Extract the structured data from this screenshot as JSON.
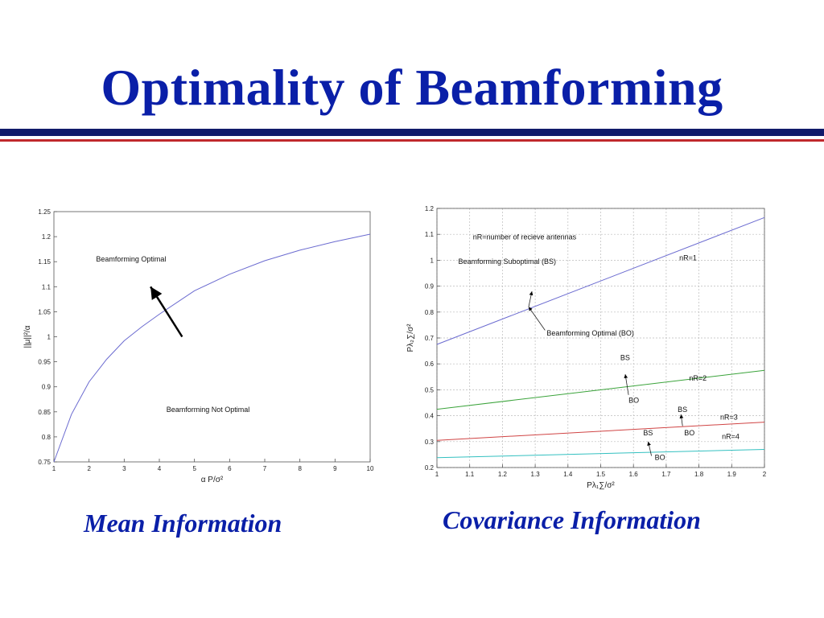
{
  "slide": {
    "title": "Optimality of Beamforming",
    "left_caption": "Mean Information",
    "right_caption": "Covariance Information",
    "title_color": "#0a1fa8"
  },
  "chart_data": [
    {
      "type": "line",
      "xlabel": "α P/σ²",
      "ylabel": "||μ||²/α",
      "xlim": [
        1,
        10
      ],
      "ylim": [
        0.75,
        1.25
      ],
      "xticks": [
        1,
        2,
        3,
        4,
        5,
        6,
        7,
        8,
        9,
        10
      ],
      "yticks": [
        0.75,
        0.8,
        0.85,
        0.9,
        0.95,
        1,
        1.05,
        1.1,
        1.15,
        1.2,
        1.25
      ],
      "grid": false,
      "series": [
        {
          "color": "#6b6bd0",
          "x": [
            1,
            1.5,
            2,
            2.5,
            3,
            3.5,
            4,
            5,
            6,
            7,
            8,
            9,
            10
          ],
          "y": [
            0.75,
            0.845,
            0.91,
            0.955,
            0.992,
            1.02,
            1.045,
            1.092,
            1.125,
            1.152,
            1.173,
            1.19,
            1.205
          ]
        }
      ],
      "annotations": [
        {
          "text": "Beamforming Optimal",
          "x": 2.2,
          "y": 1.15
        },
        {
          "text": "Beamforming Not Optimal",
          "x": 4.2,
          "y": 0.85
        }
      ],
      "arrow": {
        "from": [
          4.65,
          1.0
        ],
        "to": [
          3.75,
          1.1
        ]
      }
    },
    {
      "type": "line",
      "xlabel": "Pλ₁∑/σ²",
      "ylabel": "Pλ₂∑/σ²",
      "xlim": [
        1,
        2
      ],
      "ylim": [
        0.2,
        1.2
      ],
      "xticks": [
        1,
        1.1,
        1.2,
        1.3,
        1.4,
        1.5,
        1.6,
        1.7,
        1.8,
        1.9,
        2
      ],
      "yticks": [
        0.2,
        0.3,
        0.4,
        0.5,
        0.6,
        0.7,
        0.8,
        0.9,
        1,
        1.1,
        1.2
      ],
      "grid": true,
      "series": [
        {
          "color": "#6b6bd0",
          "x": [
            1,
            2
          ],
          "y": [
            0.675,
            1.165
          ]
        },
        {
          "color": "#3aa33a",
          "x": [
            1,
            2
          ],
          "y": [
            0.425,
            0.575
          ]
        },
        {
          "color": "#d04444",
          "x": [
            1,
            2
          ],
          "y": [
            0.305,
            0.375
          ]
        },
        {
          "color": "#33c0c0",
          "x": [
            1,
            2
          ],
          "y": [
            0.238,
            0.27
          ]
        }
      ],
      "annotations": [
        {
          "text": "nR=number of recieve antennas",
          "x": 1.11,
          "y": 1.08
        },
        {
          "text": "Beamforming Suboptimal (BS)",
          "x": 1.065,
          "y": 0.985
        },
        {
          "text": "nR=1",
          "x": 1.74,
          "y": 1.0
        },
        {
          "text": "Beamforming Optimal (BO)",
          "x": 1.335,
          "y": 0.71
        },
        {
          "text": "BS",
          "x": 1.56,
          "y": 0.615
        },
        {
          "text": "BO",
          "x": 1.585,
          "y": 0.45
        },
        {
          "text": "nR=2",
          "x": 1.77,
          "y": 0.535
        },
        {
          "text": "BS",
          "x": 1.735,
          "y": 0.415
        },
        {
          "text": "nR=3",
          "x": 1.865,
          "y": 0.385
        },
        {
          "text": "BO",
          "x": 1.755,
          "y": 0.325
        },
        {
          "text": "BS",
          "x": 1.63,
          "y": 0.325
        },
        {
          "text": "nR=4",
          "x": 1.87,
          "y": 0.31
        },
        {
          "text": "BO",
          "x": 1.665,
          "y": 0.23
        }
      ],
      "pointers": [
        {
          "from": [
            1.28,
            0.82
          ],
          "to": [
            1.29,
            0.88
          ]
        },
        {
          "from": [
            1.33,
            0.73
          ],
          "to": [
            1.28,
            0.82
          ]
        },
        {
          "from": [
            1.585,
            0.48
          ],
          "to": [
            1.575,
            0.56
          ]
        },
        {
          "from": [
            1.75,
            0.36
          ],
          "to": [
            1.745,
            0.405
          ]
        },
        {
          "from": [
            1.655,
            0.245
          ],
          "to": [
            1.645,
            0.3
          ]
        }
      ]
    }
  ]
}
